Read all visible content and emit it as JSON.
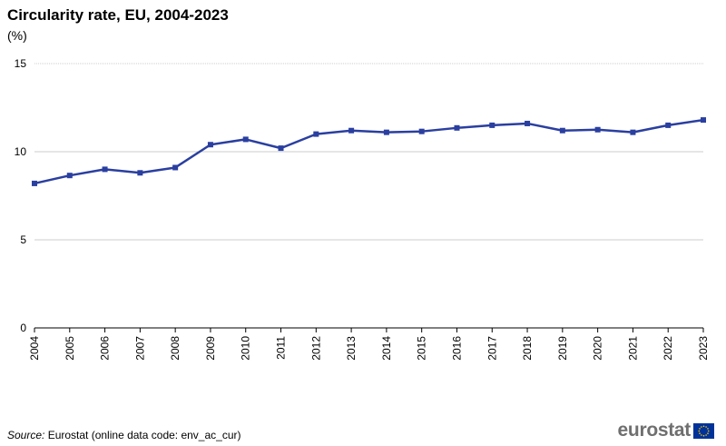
{
  "header": {
    "title": "Circularity rate, EU, 2004-2023",
    "unit": "(%)"
  },
  "chart_data": {
    "type": "line",
    "title": "Circularity rate, EU, 2004-2023",
    "ylabel": "(%)",
    "xlabel": "",
    "ylim": [
      0,
      15
    ],
    "yticks": [
      0,
      5,
      10,
      15
    ],
    "grid": true,
    "categories": [
      "2004",
      "2005",
      "2006",
      "2007",
      "2008",
      "2009",
      "2010",
      "2011",
      "2012",
      "2013",
      "2014",
      "2015",
      "2016",
      "2017",
      "2018",
      "2019",
      "2020",
      "2021",
      "2022",
      "2023"
    ],
    "series": [
      {
        "values": [
          8.2,
          8.65,
          9.0,
          8.8,
          9.1,
          10.4,
          10.7,
          10.2,
          11.0,
          11.2,
          11.1,
          11.15,
          11.35,
          11.5,
          11.6,
          11.2,
          11.25,
          11.1,
          11.5,
          11.8
        ],
        "color": "#2a3fa0"
      }
    ]
  },
  "footer": {
    "source_label": "Source:",
    "source_text": " Eurostat (online data code: env_ac_cur)"
  },
  "brand": {
    "logo_text": "eurostat",
    "flag_color": "#003399",
    "star_color": "#ffcc00"
  }
}
